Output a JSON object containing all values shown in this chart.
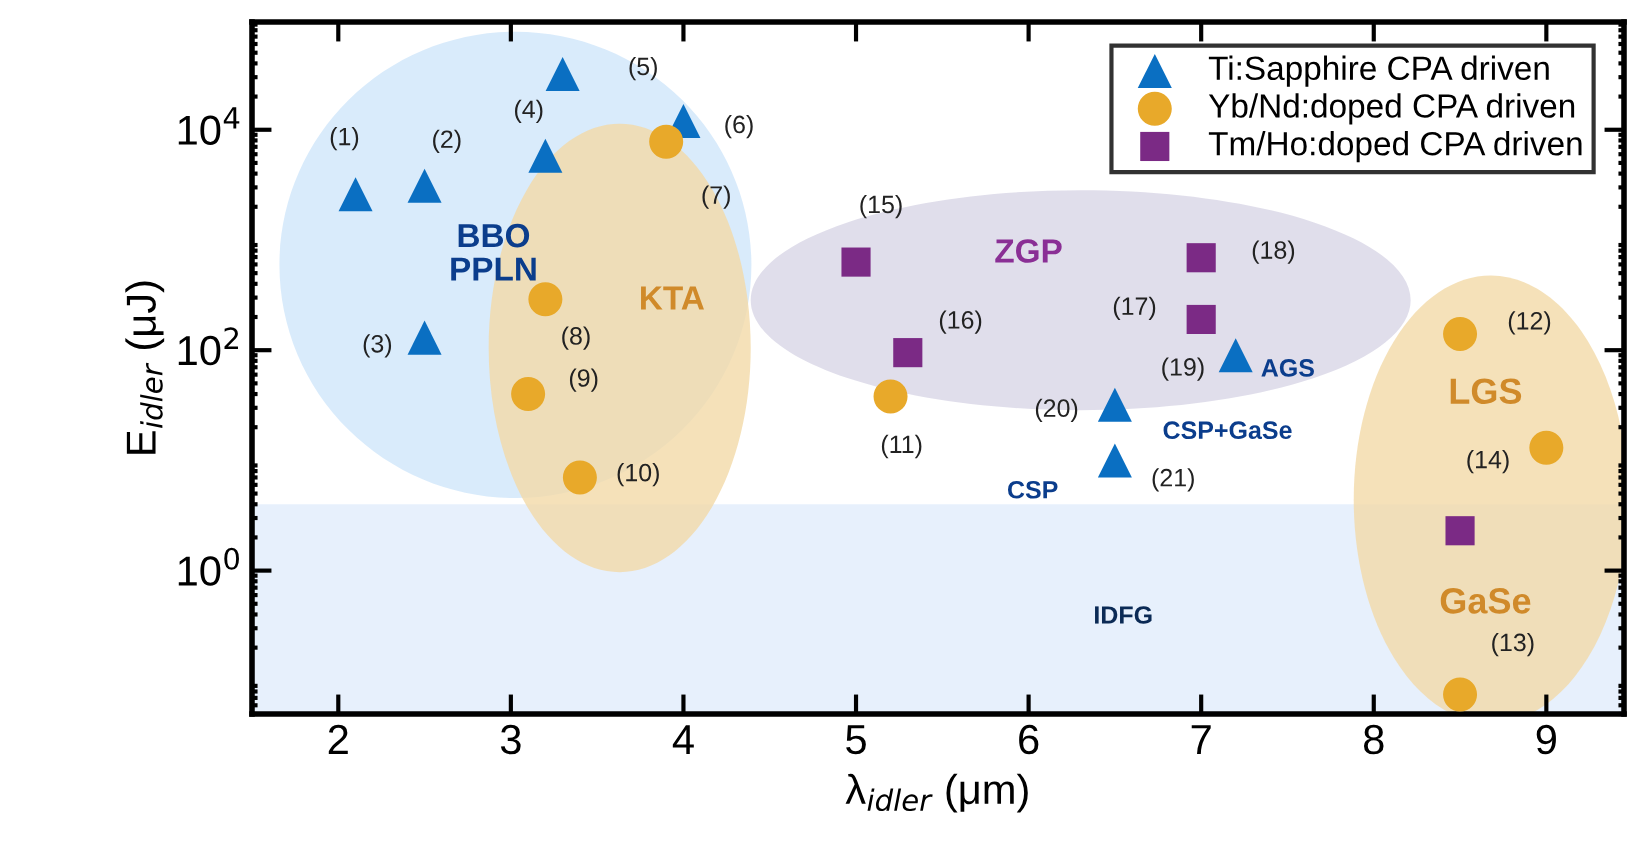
{
  "chart_data": {
    "type": "scatter",
    "xlabel": "λ$_{idler}$ (μm)",
    "ylabel": "E$_{idler}$ (μJ)",
    "log": "y",
    "grid": false,
    "legend": "top right",
    "xlim": [
      1.5,
      9.45
    ],
    "xticks": [
      2,
      3,
      4,
      5,
      6,
      7,
      8,
      9
    ],
    "ylim": [
      0.05,
      95000
    ],
    "yticks": [
      {
        "value": 1,
        "label": "10$^{0}$"
      },
      {
        "value": 100,
        "label": "10$^{2}$"
      },
      {
        "value": 10000,
        "label": "10$^{4}$"
      }
    ],
    "series": [
      {
        "name": "Ti:Sapphire CPA driven",
        "color": "#0a6fc2",
        "marker": "triangle",
        "x": [
          2.1,
          2.5,
          2.5,
          3.2,
          3.3,
          4.0,
          7.2,
          6.5,
          6.5
        ],
        "values": [
          2600,
          3100,
          130,
          5800,
          32000,
          12000,
          90,
          32,
          10
        ]
      },
      {
        "name": "Yb/Nd:doped CPA driven",
        "color": "#e8a92a",
        "marker": "circle",
        "x": [
          3.9,
          3.2,
          3.1,
          3.4,
          5.2,
          8.5,
          8.5,
          9.0
        ],
        "values": [
          7800,
          290,
          40,
          7,
          38,
          140,
          0.075,
          13
        ]
      },
      {
        "name": "Tm/Ho:doped CPA driven",
        "color": "#7b2a85",
        "marker": "square",
        "x": [
          5.0,
          5.3,
          7.0,
          7.0,
          8.5
        ],
        "values": [
          630,
          95,
          190,
          690,
          2.3
        ]
      }
    ],
    "bands": [
      {
        "axis": "y",
        "from": 0.05,
        "to": 4,
        "color": "#dde9fb"
      }
    ],
    "annotations": [
      "BBO\nPPLN",
      "KTA",
      "ZGP",
      "AGS",
      "CSP+GaSe",
      "CSP",
      "LGS",
      "GaSe",
      "IDFG",
      {
        "text": "(1)",
        "x": 2.1,
        "y": 2600
      },
      {
        "text": "(2)",
        "x": 2.5,
        "y": 3100
      },
      {
        "text": "(3)",
        "x": 2.5,
        "y": 130
      },
      {
        "text": "(4)",
        "x": 3.2,
        "y": 5800
      },
      {
        "text": "(5)",
        "x": 3.3,
        "y": 32000
      },
      {
        "text": "(6)",
        "x": 4.0,
        "y": 12000
      },
      {
        "text": "(7)",
        "x": 3.9,
        "y": 7800
      },
      {
        "text": "(8)",
        "x": 3.2,
        "y": 290
      },
      {
        "text": "(9)",
        "x": 3.1,
        "y": 40
      },
      {
        "text": "(10)",
        "x": 3.4,
        "y": 7
      },
      {
        "text": "(11)",
        "x": 5.2,
        "y": 38
      },
      {
        "text": "(12)",
        "x": 8.5,
        "y": 140
      },
      {
        "text": "(13)",
        "x": 8.5,
        "y": 0.075
      },
      {
        "text": "(14)",
        "x": 9.0,
        "y": 13
      },
      {
        "text": "(15)",
        "x": 5.0,
        "y": 630
      },
      {
        "text": "(16)",
        "x": 5.3,
        "y": 95
      },
      {
        "text": "(17)",
        "x": 7.0,
        "y": 190
      },
      {
        "text": "(18)",
        "x": 7.0,
        "y": 690
      },
      {
        "text": "(19)",
        "x": 7.2,
        "y": 90
      },
      {
        "text": "(20)",
        "x": 6.5,
        "y": 32
      },
      {
        "text": "(21)",
        "x": 6.5,
        "y": 10
      }
    ]
  }
}
